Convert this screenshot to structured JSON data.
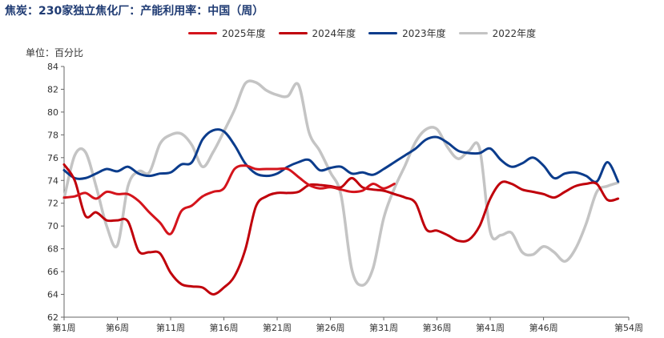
{
  "title": "焦炭：230家独立焦化厂：产能利用率：中国（周）",
  "unit_label": "单位：百分比",
  "colors": {
    "s2025": "#d4141c",
    "s2024": "#c0000b",
    "s2023": "#0b3c8c",
    "s2022": "#c4c4c4"
  },
  "chart_data": {
    "type": "line",
    "title": "焦炭：230家独立焦化厂：产能利用率：中国（周）",
    "ylabel": "单位：百分比",
    "xlabel": "",
    "ylim": [
      62,
      84
    ],
    "xlim": [
      1,
      54
    ],
    "yticks": [
      62,
      64,
      66,
      68,
      70,
      72,
      74,
      76,
      78,
      80,
      82,
      84
    ],
    "xticks": [
      {
        "x": 1,
        "label": "第1周"
      },
      {
        "x": 6,
        "label": "第6周"
      },
      {
        "x": 11,
        "label": "第11周"
      },
      {
        "x": 16,
        "label": "第16周"
      },
      {
        "x": 21,
        "label": "第21周"
      },
      {
        "x": 26,
        "label": "第26周"
      },
      {
        "x": 31,
        "label": "第31周"
      },
      {
        "x": 36,
        "label": "第36周"
      },
      {
        "x": 41,
        "label": "第41周"
      },
      {
        "x": 46,
        "label": "第46周"
      },
      {
        "x": 54,
        "label": "第54周"
      }
    ],
    "legend_position": "top",
    "grid": false,
    "series": [
      {
        "name": "2025年度",
        "color": "#d4141c",
        "x": [
          1,
          2,
          3,
          4,
          5,
          6,
          7,
          8,
          9,
          10,
          11,
          12,
          13,
          14,
          15,
          16,
          17,
          18,
          19,
          20,
          21,
          22,
          23,
          24,
          25,
          26,
          27,
          28,
          29,
          30,
          31,
          32
        ],
        "y": [
          72.5,
          72.6,
          72.9,
          72.4,
          73.0,
          72.8,
          72.8,
          72.2,
          71.2,
          70.3,
          69.3,
          71.3,
          71.8,
          72.6,
          73.0,
          73.3,
          75.0,
          75.3,
          75.0,
          75.0,
          75.0,
          75.0,
          74.3,
          73.6,
          73.3,
          73.4,
          73.2,
          73.0,
          73.1,
          73.7,
          73.3,
          73.7
        ]
      },
      {
        "name": "2024年度",
        "color": "#c0000b",
        "x": [
          1,
          2,
          3,
          4,
          5,
          6,
          7,
          8,
          9,
          10,
          11,
          12,
          13,
          14,
          15,
          16,
          17,
          18,
          19,
          20,
          21,
          22,
          23,
          24,
          25,
          26,
          27,
          28,
          29,
          30,
          31,
          32,
          33,
          34,
          35,
          36,
          37,
          38,
          39,
          40,
          41,
          42,
          43,
          44,
          45,
          46,
          47,
          48,
          49,
          50,
          51,
          52,
          53
        ],
        "y": [
          75.4,
          74.0,
          70.9,
          71.2,
          70.5,
          70.5,
          70.4,
          67.8,
          67.7,
          67.6,
          65.9,
          64.9,
          64.7,
          64.6,
          64.0,
          64.6,
          65.6,
          67.9,
          71.7,
          72.6,
          72.9,
          72.9,
          73.0,
          73.6,
          73.6,
          73.5,
          73.4,
          74.2,
          73.4,
          73.2,
          73.1,
          72.8,
          72.5,
          72.0,
          69.7,
          69.6,
          69.2,
          68.7,
          68.8,
          70.0,
          72.4,
          73.8,
          73.7,
          73.2,
          73.0,
          72.8,
          72.5,
          73.0,
          73.5,
          73.7,
          73.7,
          72.3,
          72.4
        ]
      },
      {
        "name": "2023年度",
        "color": "#0b3c8c",
        "x": [
          1,
          2,
          3,
          4,
          5,
          6,
          7,
          8,
          9,
          10,
          11,
          12,
          13,
          14,
          15,
          16,
          17,
          18,
          19,
          20,
          21,
          22,
          23,
          24,
          25,
          26,
          27,
          28,
          29,
          30,
          31,
          32,
          33,
          34,
          35,
          36,
          37,
          38,
          39,
          40,
          41,
          42,
          43,
          44,
          45,
          46,
          47,
          48,
          49,
          50,
          51,
          52,
          53
        ],
        "y": [
          74.9,
          74.2,
          74.2,
          74.6,
          75.0,
          74.8,
          75.2,
          74.6,
          74.4,
          74.6,
          74.7,
          75.4,
          75.6,
          77.6,
          78.4,
          78.3,
          77.1,
          75.5,
          74.6,
          74.4,
          74.6,
          75.2,
          75.6,
          75.8,
          74.9,
          75.1,
          75.2,
          74.6,
          74.7,
          74.5,
          75.0,
          75.6,
          76.2,
          76.8,
          77.6,
          77.8,
          77.3,
          76.6,
          76.4,
          76.4,
          76.8,
          75.8,
          75.2,
          75.5,
          76.0,
          75.3,
          74.2,
          74.6,
          74.7,
          74.4,
          73.9,
          75.6,
          73.9
        ]
      },
      {
        "name": "2022年度",
        "color": "#c4c4c4",
        "x": [
          1,
          2,
          3,
          4,
          5,
          6,
          7,
          8,
          9,
          10,
          11,
          12,
          13,
          14,
          15,
          16,
          17,
          18,
          19,
          20,
          21,
          22,
          23,
          24,
          25,
          26,
          27,
          28,
          29,
          30,
          31,
          32,
          33,
          34,
          35,
          36,
          37,
          38,
          39,
          40,
          41,
          42,
          43,
          44,
          45,
          46,
          47,
          48,
          49,
          50,
          51,
          52,
          53
        ],
        "y": [
          72.4,
          76.2,
          76.5,
          73.5,
          70.0,
          68.3,
          73.5,
          74.8,
          74.7,
          77.2,
          78.0,
          78.1,
          77.1,
          75.2,
          76.5,
          78.3,
          80.2,
          82.5,
          82.6,
          81.9,
          81.5,
          81.4,
          82.4,
          78.2,
          76.6,
          74.7,
          72.7,
          66.2,
          64.8,
          66.3,
          70.7,
          73.3,
          75.3,
          77.4,
          78.5,
          78.5,
          76.9,
          75.9,
          76.6,
          76.8,
          69.5,
          69.2,
          69.4,
          67.7,
          67.5,
          68.2,
          67.7,
          66.9,
          68.0,
          70.2,
          73.0,
          73.5,
          73.8
        ]
      }
    ]
  }
}
